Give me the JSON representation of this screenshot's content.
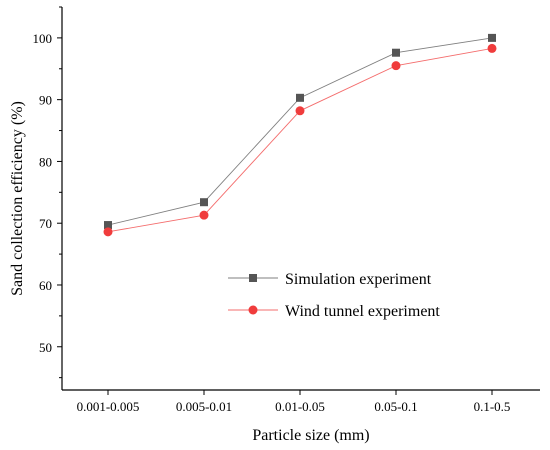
{
  "chart_data": {
    "type": "line",
    "title": "",
    "xlabel": "Particle size (mm)",
    "ylabel": "Sand collection efficiency (%)",
    "categories": [
      "0.001-0.005",
      "0.005-0.01",
      "0.01-0.05",
      "0.05-0.1",
      "0.1-0.5"
    ],
    "ylim": [
      43,
      105
    ],
    "yticks": [
      50,
      60,
      70,
      80,
      90,
      100
    ],
    "grid": false,
    "legend_position": "center-right",
    "series": [
      {
        "name": "Simulation experiment",
        "marker": "square",
        "color": "#555555",
        "values": [
          69.7,
          73.4,
          90.3,
          97.6,
          100.0
        ]
      },
      {
        "name": "Wind tunnel experiment",
        "marker": "circle",
        "color": "#F03C3C",
        "values": [
          68.6,
          71.3,
          88.2,
          95.5,
          98.3
        ]
      }
    ]
  }
}
